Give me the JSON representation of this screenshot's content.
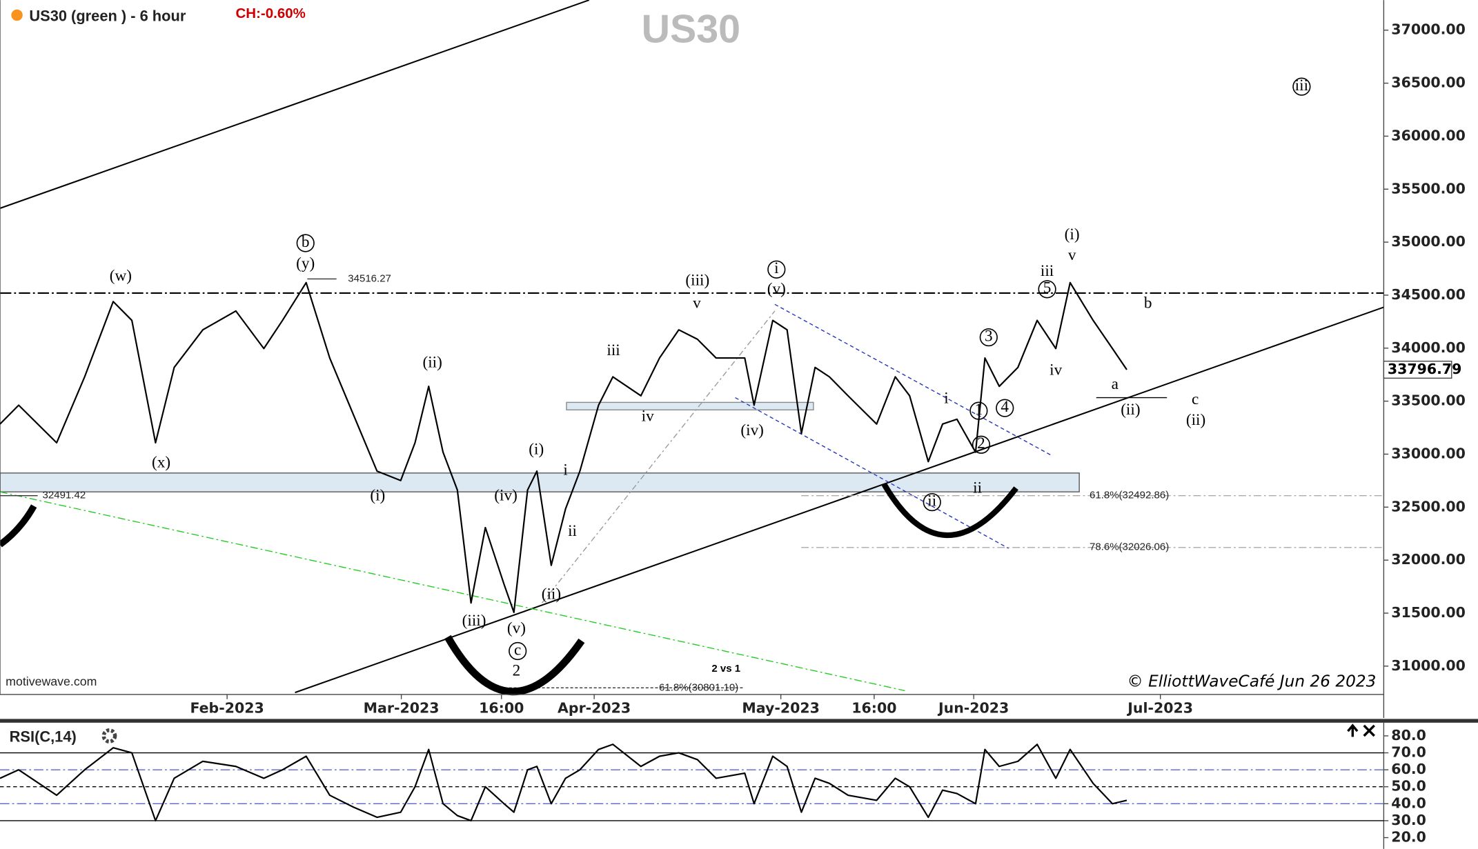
{
  "chart_data": [
    {
      "type": "line",
      "title": "US30 (green ) - 6 hour",
      "change": "CH:-0.60%",
      "watermark": "US30",
      "source": "motivewave.com",
      "credit": "© ElliottWaveCafé Jun 26 2023",
      "color": "#000000",
      "last_price": 33796.79,
      "xlim": [
        -5.5,
        216.9
      ],
      "ylim": [
        30733,
        37284
      ],
      "xticks": [
        {
          "value": 31,
          "label": "Feb-2023"
        },
        {
          "value": 59,
          "label": "Mar-2023"
        },
        {
          "value": 75.1,
          "label": "16:00"
        },
        {
          "value": 90,
          "label": "Apr-2023"
        },
        {
          "value": 120,
          "label": "May-2023"
        },
        {
          "value": 135,
          "label": "16:00"
        },
        {
          "value": 151,
          "label": "Jun-2023"
        },
        {
          "value": 181,
          "label": "Jul-2023"
        }
      ],
      "yticks": [
        {
          "value": 31000,
          "label": "31000.00"
        },
        {
          "value": 31500,
          "label": "31500.00"
        },
        {
          "value": 32000,
          "label": "32000.00"
        },
        {
          "value": 32500,
          "label": "32500.00"
        },
        {
          "value": 33000,
          "label": "33000.00"
        },
        {
          "value": 33500,
          "label": "33500.00"
        },
        {
          "value": 34000,
          "label": "34000.00"
        },
        {
          "value": 34500,
          "label": "34500.00"
        },
        {
          "value": 35000,
          "label": "35000.00"
        },
        {
          "value": 35500,
          "label": "35500.00"
        },
        {
          "value": 36000,
          "label": "36000.00"
        },
        {
          "value": 36500,
          "label": "36500.00"
        },
        {
          "value": 37000,
          "label": "37000.00"
        }
      ],
      "x": [
        -5.5,
        -2.5,
        3.6,
        8.1,
        12.7,
        15.7,
        19.5,
        22.5,
        27.1,
        32.4,
        36.9,
        39.9,
        43.7,
        47.5,
        51.3,
        55.1,
        58.9,
        61.2,
        63.4,
        65.7,
        68.0,
        70.2,
        72.5,
        75.5,
        77.1,
        79.3,
        80.8,
        83.1,
        85.4,
        87.7,
        90.7,
        93.0,
        97.5,
        100.5,
        103.6,
        106.6,
        109.6,
        114.2,
        115.7,
        118.7,
        121.0,
        123.3,
        125.5,
        127.8,
        130.8,
        135.4,
        138.4,
        140.7,
        143.7,
        146.0,
        148.3,
        151.3,
        152.8,
        155.1,
        158.1,
        161.2,
        164.2,
        166.5,
        170.2,
        173.3,
        175.6
      ],
      "values": [
        33284,
        33462,
        33107,
        33729,
        34440,
        34262,
        33107,
        33818,
        34173,
        34351,
        33996,
        34262,
        34618,
        33907,
        33373,
        32840,
        32751,
        33107,
        33640,
        33018,
        32662,
        31596,
        32307,
        31773,
        31507,
        32662,
        32840,
        31951,
        32484,
        32840,
        33462,
        33729,
        33551,
        33907,
        34173,
        34084,
        33907,
        33907,
        33462,
        34262,
        34173,
        33196,
        33818,
        33729,
        33551,
        33284,
        33729,
        33551,
        32929,
        33284,
        33329,
        33018,
        33907,
        33640,
        33818,
        34262,
        33996,
        34618,
        34262,
        33996,
        33797
      ],
      "annotations": [
        {
          "text": "(w)",
          "x": 13.9,
          "y": 34671,
          "kind": "wave"
        },
        {
          "text": "b",
          "x": 43.6,
          "y": 34991,
          "kind": "circled"
        },
        {
          "text": "(y)",
          "x": 43.6,
          "y": 34787,
          "kind": "wave"
        },
        {
          "text": "34516.27",
          "x": 53.9,
          "y": 34653,
          "kind": "note"
        },
        {
          "text": "(x)",
          "x": 20.4,
          "y": 32911,
          "kind": "wave"
        },
        {
          "text": "(ii)",
          "x": 64.0,
          "y": 33853,
          "kind": "wave"
        },
        {
          "text": "(i)",
          "x": 55.2,
          "y": 32600,
          "kind": "wave"
        },
        {
          "text": "(iii)",
          "x": 70.7,
          "y": 31418,
          "kind": "wave"
        },
        {
          "text": "(v)",
          "x": 77.5,
          "y": 31347,
          "kind": "wave"
        },
        {
          "text": "c",
          "x": 77.7,
          "y": 31142,
          "kind": "circled"
        },
        {
          "text": "2",
          "x": 77.5,
          "y": 30947,
          "kind": "big"
        },
        {
          "text": "(iv)",
          "x": 75.8,
          "y": 32600,
          "kind": "wave"
        },
        {
          "text": "(i)",
          "x": 80.7,
          "y": 33035,
          "kind": "wave"
        },
        {
          "text": "i",
          "x": 85.4,
          "y": 32840,
          "kind": "wave"
        },
        {
          "text": "ii",
          "x": 86.5,
          "y": 32262,
          "kind": "wave"
        },
        {
          "text": "(ii)",
          "x": 83.1,
          "y": 31667,
          "kind": "wave"
        },
        {
          "text": "iii",
          "x": 93.1,
          "y": 33969,
          "kind": "wave"
        },
        {
          "text": "iv",
          "x": 98.6,
          "y": 33347,
          "kind": "wave"
        },
        {
          "text": "(iii)",
          "x": 106.6,
          "y": 34627,
          "kind": "wave"
        },
        {
          "text": "v",
          "x": 106.5,
          "y": 34413,
          "kind": "wave"
        },
        {
          "text": "i",
          "x": 119.3,
          "y": 34742,
          "kind": "circled"
        },
        {
          "text": "(v)",
          "x": 119.3,
          "y": 34547,
          "kind": "wave"
        },
        {
          "text": "(iv)",
          "x": 115.4,
          "y": 33213,
          "kind": "wave"
        },
        {
          "text": "i",
          "x": 146.6,
          "y": 33516,
          "kind": "wave"
        },
        {
          "text": "1",
          "x": 151.8,
          "y": 33409,
          "kind": "circled"
        },
        {
          "text": "2",
          "x": 152.2,
          "y": 33089,
          "kind": "circled"
        },
        {
          "text": "3",
          "x": 153.4,
          "y": 34102,
          "kind": "circled"
        },
        {
          "text": "4",
          "x": 156.0,
          "y": 33435,
          "kind": "circled"
        },
        {
          "text": "ii",
          "x": 151.6,
          "y": 32671,
          "kind": "wave"
        },
        {
          "text": "ii",
          "x": 144.3,
          "y": 32547,
          "kind": "circled"
        },
        {
          "text": "iii",
          "x": 162.8,
          "y": 34716,
          "kind": "wave"
        },
        {
          "text": "5",
          "x": 162.8,
          "y": 34556,
          "kind": "circled"
        },
        {
          "text": "iv",
          "x": 164.2,
          "y": 33782,
          "kind": "wave"
        },
        {
          "text": "(i)",
          "x": 166.8,
          "y": 35062,
          "kind": "wave"
        },
        {
          "text": "v",
          "x": 166.8,
          "y": 34867,
          "kind": "wave"
        },
        {
          "text": "b",
          "x": 179.0,
          "y": 34413,
          "kind": "wave"
        },
        {
          "text": "a",
          "x": 173.7,
          "y": 33649,
          "kind": "wave"
        },
        {
          "text": "(ii)",
          "x": 176.2,
          "y": 33409,
          "kind": "wave"
        },
        {
          "text": "c",
          "x": 186.6,
          "y": 33507,
          "kind": "wave"
        },
        {
          "text": "(ii)",
          "x": 186.7,
          "y": 33311,
          "kind": "wave"
        },
        {
          "text": "iii",
          "x": 203.7,
          "y": 36467,
          "kind": "circled"
        },
        {
          "text": "2 vs 1",
          "x": 111.2,
          "y": 30973,
          "kind": "label"
        },
        {
          "text": "61.8%(32492.86)",
          "x": 176.0,
          "y": 32609,
          "kind": "note"
        },
        {
          "text": "78.6%(32026.06)",
          "x": 176.0,
          "y": 32120,
          "kind": "note"
        },
        {
          "text": "61.8%(30801.10)",
          "x": 106.8,
          "y": 30795,
          "kind": "note"
        },
        {
          "text": "32491.42",
          "x": 4.8,
          "y": 32609,
          "kind": "note"
        }
      ]
    },
    {
      "type": "line",
      "title": "RSI(C,14)",
      "color": "#000000",
      "xlim": [
        -5.5,
        216.9
      ],
      "ylim": [
        15,
        86.1
      ],
      "yticks": [
        {
          "value": 80,
          "label": "80.0"
        },
        {
          "value": 70,
          "label": "70.0"
        },
        {
          "value": 60,
          "label": "60.0"
        },
        {
          "value": 50,
          "label": "50.0"
        },
        {
          "value": 40,
          "label": "40.0"
        },
        {
          "value": 30,
          "label": "30.0"
        },
        {
          "value": 20,
          "label": "20.0"
        }
      ],
      "levels": [
        {
          "value": 70,
          "style": "solid"
        },
        {
          "value": 60,
          "style": "dashdot"
        },
        {
          "value": 50,
          "style": "dashed"
        },
        {
          "value": 40,
          "style": "dashdot"
        },
        {
          "value": 30,
          "style": "solid"
        }
      ],
      "x": [
        -5.5,
        -2.5,
        3.6,
        8.1,
        12.7,
        15.7,
        19.5,
        22.5,
        27.1,
        32.4,
        36.9,
        39.9,
        43.7,
        47.5,
        51.3,
        55.1,
        58.9,
        61.2,
        63.4,
        65.7,
        68.0,
        70.2,
        72.5,
        75.5,
        77.1,
        79.3,
        80.8,
        83.1,
        85.4,
        87.7,
        90.7,
        93.0,
        97.5,
        100.5,
        103.6,
        106.6,
        109.6,
        114.2,
        115.7,
        118.7,
        121.0,
        123.3,
        125.5,
        127.8,
        130.8,
        135.4,
        138.4,
        140.7,
        143.7,
        146.0,
        148.3,
        151.3,
        152.8,
        155.1,
        158.1,
        161.2,
        164.2,
        166.5,
        170.2,
        173.3,
        175.6
      ],
      "values": [
        55,
        60,
        45,
        60,
        73,
        70,
        30,
        55,
        65,
        62,
        55,
        60,
        68,
        45,
        38,
        32,
        35,
        50,
        72,
        40,
        33,
        30,
        50,
        40,
        35,
        60,
        62,
        40,
        55,
        60,
        72,
        75,
        62,
        68,
        70,
        66,
        55,
        58,
        40,
        68,
        62,
        35,
        55,
        52,
        45,
        42,
        55,
        50,
        32,
        48,
        46,
        40,
        72,
        62,
        65,
        75,
        55,
        72,
        52,
        40,
        42
      ]
    }
  ]
}
